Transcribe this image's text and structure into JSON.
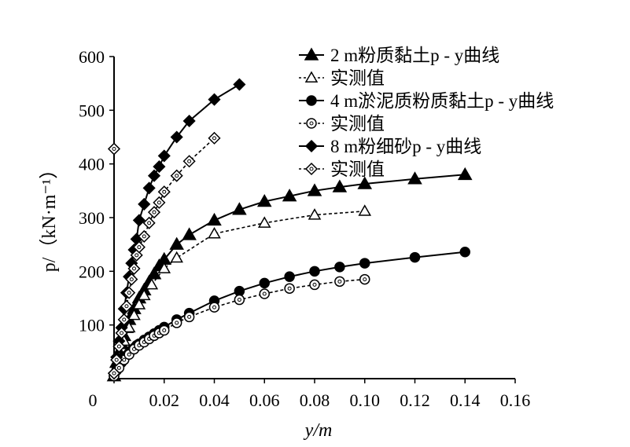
{
  "chart_data": {
    "type": "line",
    "xlabel": "y/m",
    "ylabel": "p/（kN·m⁻¹）",
    "xlim": [
      0,
      0.16
    ],
    "ylim": [
      0,
      600
    ],
    "x_ticks": [
      "0",
      "0.02",
      "0.04",
      "0.06",
      "0.08",
      "0.10",
      "0.12",
      "0.14",
      "0.16"
    ],
    "y_ticks": [
      "100",
      "200",
      "300",
      "400",
      "500",
      "600"
    ],
    "legend_position": "top-right",
    "series": [
      {
        "name": "2 m粉质黏土p - y曲线",
        "marker": "triangle-filled",
        "line": "solid",
        "points": [
          [
            0,
            5
          ],
          [
            0.001,
            30
          ],
          [
            0.002,
            50
          ],
          [
            0.003,
            65
          ],
          [
            0.004,
            80
          ],
          [
            0.005,
            95
          ],
          [
            0.006,
            110
          ],
          [
            0.008,
            130
          ],
          [
            0.01,
            150
          ],
          [
            0.012,
            165
          ],
          [
            0.014,
            180
          ],
          [
            0.016,
            195
          ],
          [
            0.018,
            210
          ],
          [
            0.02,
            222
          ],
          [
            0.025,
            250
          ],
          [
            0.03,
            268
          ],
          [
            0.04,
            295
          ],
          [
            0.05,
            315
          ],
          [
            0.06,
            330
          ],
          [
            0.07,
            340
          ],
          [
            0.08,
            350
          ],
          [
            0.09,
            357
          ],
          [
            0.1,
            363
          ],
          [
            0.12,
            372
          ],
          [
            0.14,
            380
          ]
        ]
      },
      {
        "name": "实测值",
        "marker": "triangle-open",
        "line": "dashed",
        "points": [
          [
            0,
            5
          ],
          [
            0.002,
            40
          ],
          [
            0.004,
            70
          ],
          [
            0.006,
            95
          ],
          [
            0.008,
            118
          ],
          [
            0.01,
            138
          ],
          [
            0.012,
            155
          ],
          [
            0.015,
            175
          ],
          [
            0.02,
            205
          ],
          [
            0.025,
            225
          ],
          [
            0.04,
            270
          ],
          [
            0.06,
            290
          ],
          [
            0.08,
            305
          ],
          [
            0.1,
            312
          ]
        ]
      },
      {
        "name": "4 m淤泥质粉质黏土p - y曲线",
        "marker": "circle-filled",
        "line": "solid",
        "points": [
          [
            0,
            5
          ],
          [
            0.001,
            15
          ],
          [
            0.002,
            22
          ],
          [
            0.003,
            30
          ],
          [
            0.004,
            37
          ],
          [
            0.005,
            43
          ],
          [
            0.006,
            48
          ],
          [
            0.007,
            53
          ],
          [
            0.008,
            57
          ],
          [
            0.009,
            62
          ],
          [
            0.01,
            65
          ],
          [
            0.012,
            72
          ],
          [
            0.014,
            78
          ],
          [
            0.016,
            84
          ],
          [
            0.018,
            90
          ],
          [
            0.02,
            96
          ],
          [
            0.025,
            110
          ],
          [
            0.03,
            122
          ],
          [
            0.04,
            145
          ],
          [
            0.05,
            163
          ],
          [
            0.06,
            178
          ],
          [
            0.07,
            190
          ],
          [
            0.08,
            200
          ],
          [
            0.09,
            208
          ],
          [
            0.1,
            215
          ],
          [
            0.12,
            226
          ],
          [
            0.14,
            236
          ]
        ]
      },
      {
        "name": "实测值",
        "marker": "circle-open",
        "line": "dashed",
        "points": [
          [
            0,
            5
          ],
          [
            0.002,
            20
          ],
          [
            0.004,
            35
          ],
          [
            0.006,
            45
          ],
          [
            0.008,
            55
          ],
          [
            0.01,
            62
          ],
          [
            0.012,
            68
          ],
          [
            0.014,
            74
          ],
          [
            0.016,
            80
          ],
          [
            0.018,
            85
          ],
          [
            0.02,
            90
          ],
          [
            0.025,
            104
          ],
          [
            0.03,
            115
          ],
          [
            0.04,
            133
          ],
          [
            0.05,
            147
          ],
          [
            0.06,
            158
          ],
          [
            0.07,
            168
          ],
          [
            0.08,
            175
          ],
          [
            0.09,
            181
          ],
          [
            0.1,
            185
          ]
        ]
      },
      {
        "name": "8 m粉细砂p - y曲线",
        "marker": "diamond-filled",
        "line": "solid",
        "points": [
          [
            0,
            10
          ],
          [
            0.001,
            40
          ],
          [
            0.002,
            70
          ],
          [
            0.003,
            95
          ],
          [
            0.004,
            130
          ],
          [
            0.005,
            160
          ],
          [
            0.006,
            190
          ],
          [
            0.007,
            215
          ],
          [
            0.008,
            240
          ],
          [
            0.009,
            260
          ],
          [
            0.01,
            295
          ],
          [
            0.012,
            325
          ],
          [
            0.014,
            355
          ],
          [
            0.016,
            378
          ],
          [
            0.018,
            395
          ],
          [
            0.02,
            415
          ],
          [
            0.025,
            450
          ],
          [
            0.03,
            480
          ],
          [
            0.04,
            520
          ],
          [
            0.05,
            548
          ]
        ]
      },
      {
        "name": "实测值",
        "marker": "diamond-open",
        "line": "dashed",
        "points": [
          [
            0,
            428
          ],
          [
            0,
            10
          ],
          [
            0.001,
            35
          ],
          [
            0.002,
            60
          ],
          [
            0.003,
            85
          ],
          [
            0.004,
            110
          ],
          [
            0.005,
            135
          ],
          [
            0.006,
            160
          ],
          [
            0.007,
            185
          ],
          [
            0.008,
            205
          ],
          [
            0.009,
            230
          ],
          [
            0.01,
            245
          ],
          [
            0.012,
            265
          ],
          [
            0.014,
            290
          ],
          [
            0.016,
            310
          ],
          [
            0.018,
            328
          ],
          [
            0.02,
            348
          ],
          [
            0.025,
            378
          ],
          [
            0.03,
            405
          ],
          [
            0.04,
            448
          ]
        ]
      }
    ]
  }
}
